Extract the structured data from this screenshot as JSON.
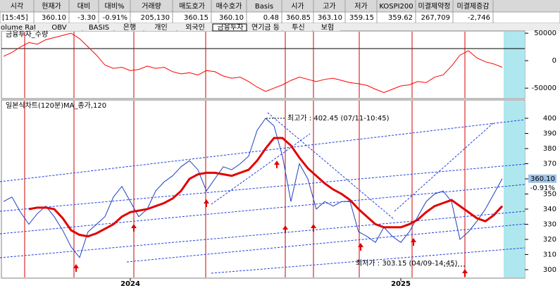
{
  "table": {
    "headers": [
      "시각",
      "현재가",
      "대비",
      "대비%",
      "거래량",
      "매도호가",
      "매수호가",
      "Basis",
      "시가",
      "고가",
      "저가",
      "KOSPI200",
      "미결제약정",
      "미결제증감"
    ],
    "values": [
      "[15:45]",
      "360.10",
      "-3.30",
      "-0.91%",
      "205,130",
      "360.15",
      "360.10",
      "0.48",
      "360.85",
      "363.10",
      "359.15",
      "359.62",
      "267,709",
      "-2,746"
    ],
    "value_colors": [
      "#000000",
      "#000000",
      "#0000ff",
      "#0000ff",
      "#000000",
      "#000000",
      "#000000",
      "#ff0000",
      "#0000ff",
      "#0000ff",
      "#0000ff",
      "#000000",
      "#000000",
      "#0000ff"
    ]
  },
  "tabs": [
    "olume Ratio",
    "OBV",
    "BASIS",
    "은행",
    "개인",
    "외국인",
    "금융투자",
    "연기금 등",
    "투신",
    "보험"
  ],
  "chart_data": [
    {
      "type": "line",
      "title": "금융투자_수량",
      "color": "#ff0000",
      "values": [
        8000,
        15000,
        25000,
        33000,
        30000,
        38000,
        42000,
        46000,
        50000,
        40000,
        25000,
        10000,
        -8000,
        -14000,
        -12000,
        -18000,
        -16000,
        -10000,
        -14000,
        -12000,
        -20000,
        -24000,
        -22000,
        -26000,
        -18000,
        -20000,
        -28000,
        -32000,
        -30000,
        -38000,
        -48000,
        -56000,
        -50000,
        -44000,
        -36000,
        -30000,
        -34000,
        -38000,
        -34000,
        -32000,
        -36000,
        -40000,
        -42000,
        -45000,
        -52000,
        -58000,
        -52000,
        -46000,
        -44000,
        -38000,
        -40000,
        -30000,
        -26000,
        -10000,
        10000,
        18000,
        5000,
        -2000,
        -6000,
        -12000
      ],
      "ylim": [
        -69000,
        54000
      ],
      "yticks": [
        50000,
        0,
        -50000
      ]
    },
    {
      "type": "line",
      "title": "일본식차트(120분)",
      "categories": [
        null,
        null,
        null,
        null,
        null,
        null,
        null,
        null,
        null,
        null,
        null,
        null,
        null,
        null,
        null,
        "2024",
        null,
        null,
        null,
        null,
        null,
        null,
        null,
        null,
        null,
        null,
        null,
        null,
        null,
        null,
        null,
        null,
        null,
        null,
        null,
        null,
        null,
        null,
        null,
        null,
        null,
        null,
        null,
        null,
        null,
        null,
        null,
        "2025",
        null,
        null,
        null,
        null,
        null,
        null,
        null,
        null,
        null,
        null,
        null,
        null
      ],
      "series": [
        {
          "color": "#1f3fbf",
          "values": [
            345,
            348,
            338,
            330,
            337,
            342,
            335,
            326,
            315,
            308,
            325,
            330,
            335,
            348,
            355,
            345,
            335,
            340,
            352,
            358,
            362,
            368,
            372,
            366,
            352,
            360,
            368,
            366,
            370,
            375,
            392,
            400,
            395,
            375,
            345,
            370,
            360,
            340,
            345,
            342,
            345,
            345,
            325,
            322,
            318,
            328,
            322,
            318,
            325,
            335,
            345,
            350,
            352,
            345,
            320,
            325,
            332,
            340,
            350,
            360.1
          ]
        },
        {
          "name": "MA_종가,120",
          "color": "#e00000",
          "values": [
            null,
            null,
            null,
            340,
            341,
            341,
            340,
            334,
            326,
            323,
            322,
            324,
            327,
            330,
            335,
            338,
            339,
            340,
            342,
            344,
            347,
            352,
            360,
            363,
            364,
            364,
            363,
            362,
            364,
            366,
            372,
            380,
            387,
            387,
            382,
            374,
            367,
            362,
            357,
            353,
            350,
            346,
            340,
            335,
            330,
            328,
            328,
            328,
            330,
            333,
            338,
            342,
            344,
            346,
            342,
            338,
            334,
            332,
            336,
            342
          ]
        }
      ],
      "annotations": [
        "최고가 : 402.45 (07/11-10:45)",
        "최저가 : 303.15 (04/09-14:45)"
      ],
      "ylim": [
        294.4,
        410.7
      ],
      "yticks": [
        300,
        310,
        320,
        330,
        340,
        350,
        360,
        370,
        380,
        390,
        400
      ]
    }
  ]
}
